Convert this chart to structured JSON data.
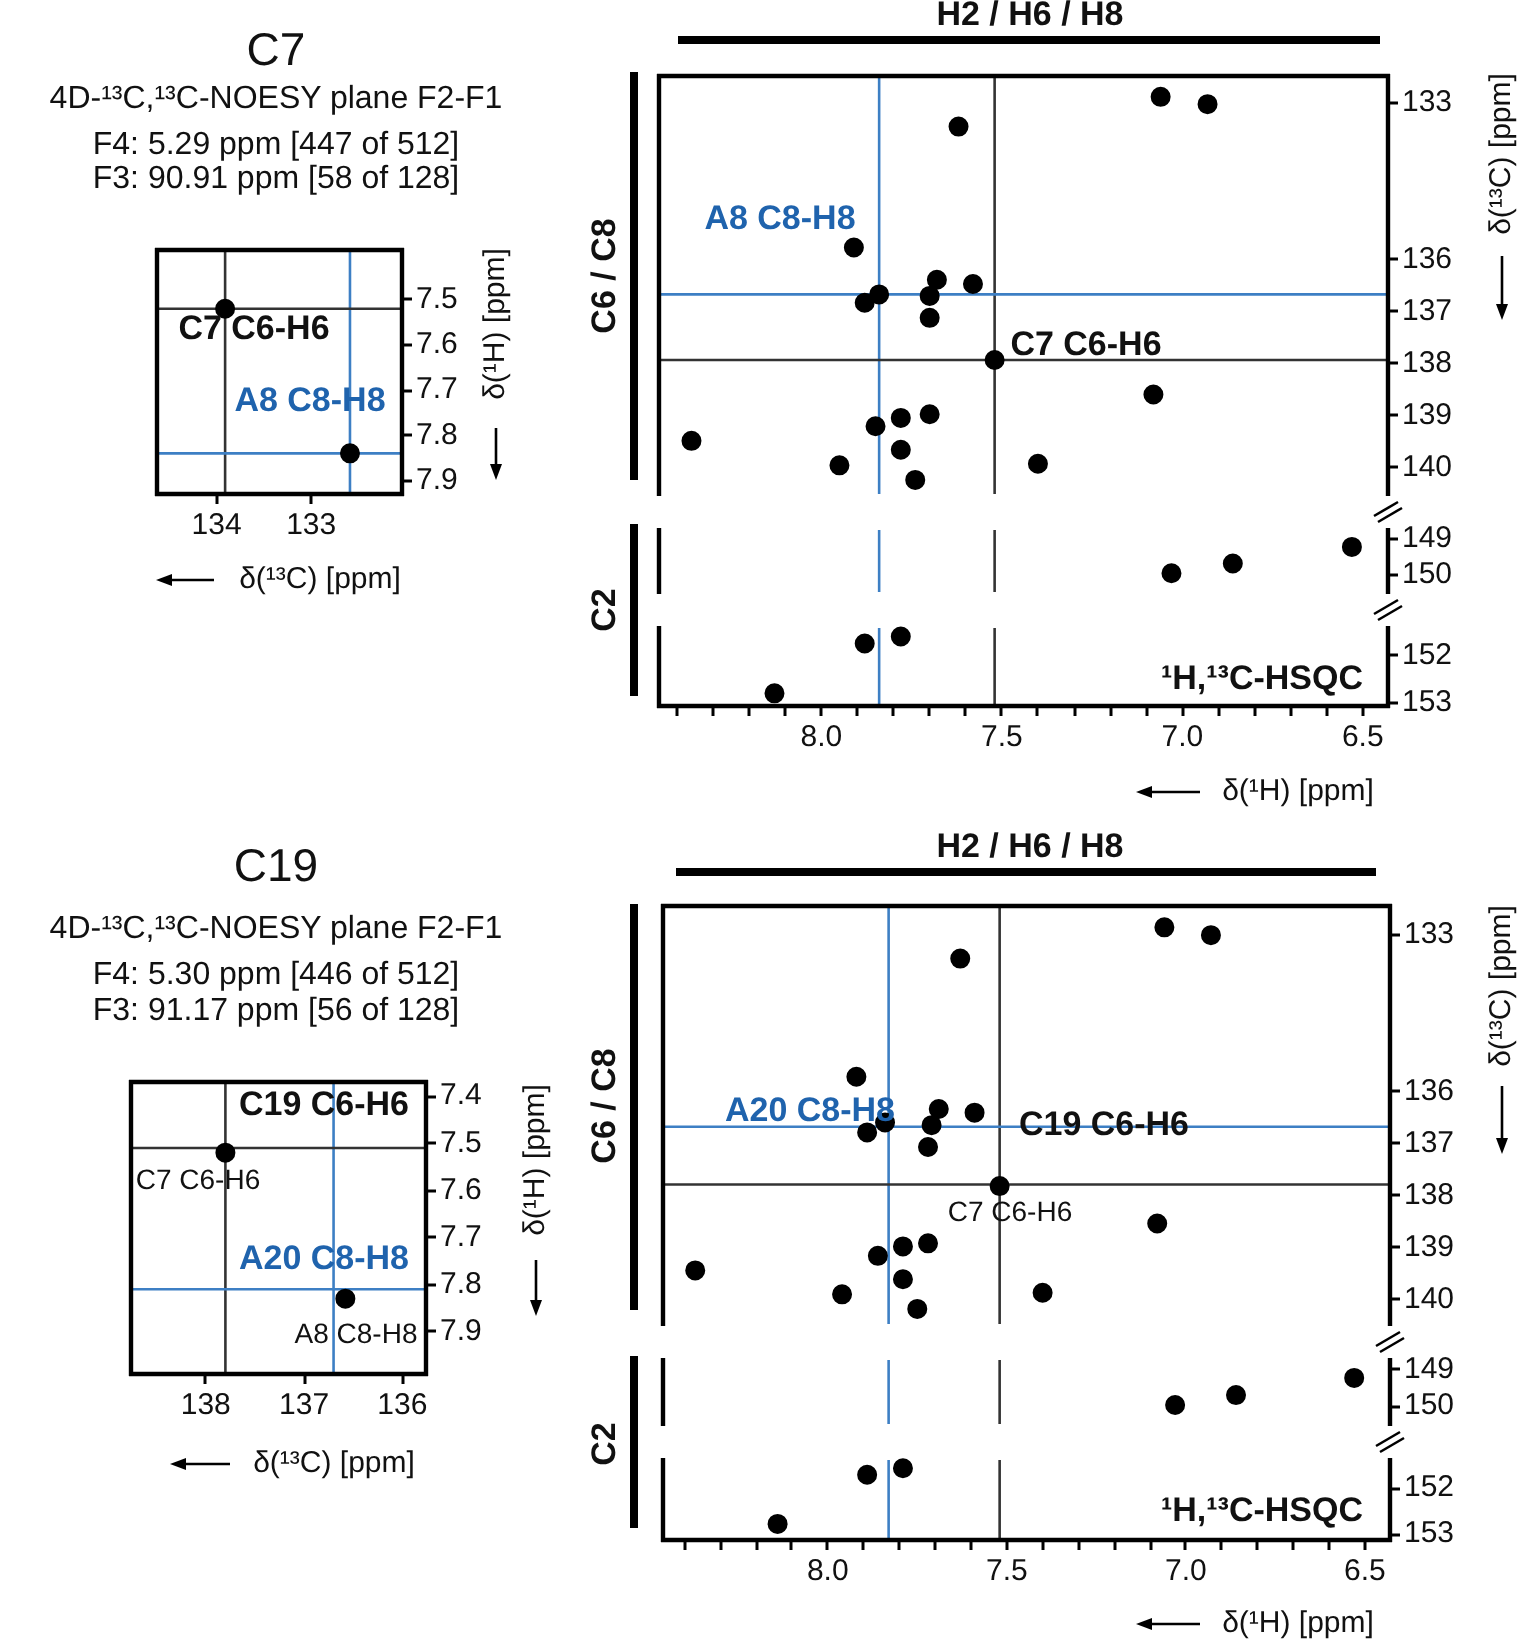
{
  "chart_data": [
    {
      "type": "scatter",
      "title": "C7",
      "subtitle": "4D-¹³C,¹³C-NOESY plane F2-F1",
      "xlabel": "δ(¹³C) [ppm]",
      "ylabel": "δ(¹H) [ppm]",
      "annotations": [
        "F4: 5.29 ppm [447 of 512]",
        "F3: 90.91 ppm [58 of 128]",
        "C7 C6-H6",
        "A8 C8-H8"
      ],
      "x": [
        133.91,
        132.59
      ],
      "values": [
        7.52,
        7.84
      ],
      "color": "#000000",
      "marker": "circle",
      "xlim": [
        134.63,
        132.04
      ],
      "xticks": [
        134,
        133
      ],
      "ylim": [
        7.93,
        7.39
      ],
      "yticks": [
        7.5,
        7.6,
        7.7,
        7.8,
        7.9
      ],
      "ref_lines": [
        {
          "axis": "x",
          "value": 133.91,
          "color": "#333333"
        },
        {
          "axis": "x",
          "value": 132.59,
          "color": "#3d7fc4"
        },
        {
          "axis": "y",
          "value": 7.52,
          "color": "#333333"
        },
        {
          "axis": "y",
          "value": 7.84,
          "color": "#3d7fc4"
        }
      ]
    },
    {
      "type": "scatter",
      "ylabel": "δ(¹³C) [ppm]",
      "annotations": [
        "H2 / H6 / H8",
        "C6 / C8",
        "A8 C8-H8",
        "C7 C6-H6"
      ],
      "x": [
        7.06,
        6.93,
        7.62,
        7.91,
        7.68,
        7.58,
        7.7,
        7.84,
        7.88,
        7.7,
        7.52,
        7.08,
        7.7,
        7.78,
        7.85,
        8.36,
        7.78,
        7.95,
        7.4,
        7.74
      ],
      "values": [
        132.88,
        133.02,
        133.45,
        135.77,
        136.39,
        136.47,
        136.7,
        136.67,
        136.83,
        137.12,
        137.93,
        138.59,
        138.97,
        139.04,
        139.2,
        139.48,
        139.65,
        139.95,
        139.92,
        140.23
      ],
      "color": "#000000",
      "marker": "circle",
      "xlim": [
        8.45,
        6.43
      ],
      "ylim": [
        140.5,
        132.48
      ],
      "yticks": [
        133,
        136,
        137,
        138,
        139,
        140
      ],
      "tick_labels": "y",
      "ref_lines": [
        {
          "axis": "x",
          "value": 7.52,
          "color": "#333333"
        },
        {
          "axis": "x",
          "value": 7.84,
          "color": "#3d7fc4"
        },
        {
          "axis": "y",
          "value": 137.93,
          "color": "#333333"
        },
        {
          "axis": "y",
          "value": 136.67,
          "color": "#3d7fc4"
        }
      ]
    },
    {
      "type": "scatter",
      "x": [
        6.53,
        6.86,
        7.03
      ],
      "values": [
        149.24,
        149.7,
        149.97
      ],
      "color": "#000000",
      "marker": "circle",
      "xlim": [
        8.45,
        6.43
      ],
      "ylim": [
        150.49,
        148.77
      ],
      "yticks": [
        149,
        150
      ],
      "tick_labels": "y",
      "ref_lines": [
        {
          "axis": "x",
          "value": 7.52,
          "color": "#333333"
        },
        {
          "axis": "x",
          "value": 7.84,
          "color": "#3d7fc4"
        }
      ]
    },
    {
      "type": "scatter",
      "xlabel": "δ(¹H) [ppm]",
      "annotations": [
        "C2",
        "¹H,¹³C-HSQC"
      ],
      "x": [
        7.78,
        7.88,
        8.13
      ],
      "values": [
        151.6,
        151.75,
        152.81
      ],
      "color": "#000000",
      "marker": "circle",
      "xlim": [
        8.45,
        6.43
      ],
      "xticks": [
        {
          "value": 8.4,
          "label": null
        },
        {
          "value": 8.3,
          "label": null
        },
        {
          "value": 8.2,
          "label": null
        },
        {
          "value": 8.1,
          "label": null
        },
        {
          "value": 8,
          "label": "8.0"
        },
        {
          "value": 7.9,
          "label": null
        },
        {
          "value": 7.8,
          "label": null
        },
        {
          "value": 7.7,
          "label": null
        },
        {
          "value": 7.6,
          "label": null
        },
        {
          "value": 7.5,
          "label": "7.5"
        },
        {
          "value": 7.4,
          "label": null
        },
        {
          "value": 7.3,
          "label": null
        },
        {
          "value": 7.2,
          "label": null
        },
        {
          "value": 7.1,
          "label": null
        },
        {
          "value": 7,
          "label": "7.0"
        },
        {
          "value": 6.9,
          "label": null
        },
        {
          "value": 6.8,
          "label": null
        },
        {
          "value": 6.7,
          "label": null
        },
        {
          "value": 6.6,
          "label": null
        },
        {
          "value": 6.5,
          "label": "6.5"
        }
      ],
      "ylim": [
        153.08,
        151.42
      ],
      "yticks": [
        152,
        153
      ],
      "ref_lines": [
        {
          "axis": "x",
          "value": 7.52,
          "color": "#333333"
        },
        {
          "axis": "x",
          "value": 7.84,
          "color": "#3d7fc4"
        }
      ]
    },
    {
      "type": "scatter",
      "title": "C19",
      "subtitle": "4D-¹³C,¹³C-NOESY plane F2-F1",
      "xlabel": "δ(¹³C) [ppm]",
      "ylabel": "δ(¹H) [ppm]",
      "annotations": [
        "F4: 5.30 ppm [446 of 512]",
        "F3: 91.17 ppm [56 of 128]",
        "C19 C6-H6",
        "C7 C6-H6",
        "A20 C8-H8",
        "A8 C8-H8"
      ],
      "x": [
        137.8,
        136.58
      ],
      "values": [
        7.52,
        7.83
      ],
      "color": "#000000",
      "marker": "circle",
      "xlim": [
        138.76,
        135.76
      ],
      "xticks": [
        138,
        137,
        136
      ],
      "ylim": [
        7.99,
        7.37
      ],
      "yticks": [
        7.4,
        7.5,
        7.6,
        7.7,
        7.8,
        7.9
      ],
      "ref_lines": [
        {
          "axis": "x",
          "value": 137.8,
          "color": "#333333"
        },
        {
          "axis": "x",
          "value": 136.7,
          "color": "#3d7fc4"
        },
        {
          "axis": "y",
          "value": 7.51,
          "color": "#333333"
        },
        {
          "axis": "y",
          "value": 7.81,
          "color": "#3d7fc4"
        }
      ]
    },
    {
      "type": "scatter",
      "ylabel": "δ(¹³C) [ppm]",
      "annotations": [
        "H2 / H6 / H8",
        "C6 / C8",
        "A20 C8-H8",
        "C19 C6-H6",
        "C7 C6-H6"
      ],
      "x": [
        7.06,
        6.93,
        7.63,
        7.92,
        7.69,
        7.59,
        7.71,
        7.84,
        7.89,
        7.72,
        7.52,
        7.08,
        7.72,
        7.79,
        7.86,
        8.37,
        7.79,
        7.96,
        7.4,
        7.75
      ],
      "values": [
        132.85,
        133.0,
        133.45,
        135.72,
        136.34,
        136.41,
        136.65,
        136.6,
        136.79,
        137.07,
        137.82,
        138.54,
        138.92,
        138.98,
        139.16,
        139.44,
        139.61,
        139.9,
        139.87,
        140.18
      ],
      "color": "#000000",
      "marker": "circle",
      "xlim": [
        8.46,
        6.43
      ],
      "ylim": [
        140.47,
        132.44
      ],
      "yticks": [
        133,
        136,
        137,
        138,
        139,
        140
      ],
      "tick_labels": "y",
      "ref_lines": [
        {
          "axis": "x",
          "value": 7.52,
          "color": "#333333"
        },
        {
          "axis": "x",
          "value": 7.83,
          "color": "#3d7fc4"
        },
        {
          "axis": "y",
          "value": 137.79,
          "color": "#333333"
        },
        {
          "axis": "y",
          "value": 136.68,
          "color": "#3d7fc4"
        }
      ]
    },
    {
      "type": "scatter",
      "x": [
        6.53,
        6.86,
        7.03
      ],
      "values": [
        149.23,
        149.7,
        149.97
      ],
      "color": "#000000",
      "marker": "circle",
      "xlim": [
        8.46,
        6.43
      ],
      "ylim": [
        150.49,
        148.74
      ],
      "yticks": [
        149,
        150
      ],
      "tick_labels": "y",
      "ref_lines": [
        {
          "axis": "x",
          "value": 7.52,
          "color": "#333333"
        },
        {
          "axis": "x",
          "value": 7.83,
          "color": "#3d7fc4"
        }
      ]
    },
    {
      "type": "scatter",
      "xlabel": "δ(¹H) [ppm]",
      "annotations": [
        "C2",
        "¹H,¹³C-HSQC"
      ],
      "x": [
        7.79,
        7.89,
        8.14
      ],
      "values": [
        151.57,
        151.71,
        152.78
      ],
      "color": "#000000",
      "marker": "circle",
      "xlim": [
        8.46,
        6.43
      ],
      "xticks": [
        {
          "value": 8.4,
          "label": null
        },
        {
          "value": 8.3,
          "label": null
        },
        {
          "value": 8.2,
          "label": null
        },
        {
          "value": 8.1,
          "label": null
        },
        {
          "value": 8,
          "label": "8.0"
        },
        {
          "value": 7.9,
          "label": null
        },
        {
          "value": 7.8,
          "label": null
        },
        {
          "value": 7.7,
          "label": null
        },
        {
          "value": 7.6,
          "label": null
        },
        {
          "value": 7.5,
          "label": "7.5"
        },
        {
          "value": 7.4,
          "label": null
        },
        {
          "value": 7.3,
          "label": null
        },
        {
          "value": 7.2,
          "label": null
        },
        {
          "value": 7.1,
          "label": null
        },
        {
          "value": 7,
          "label": "7.0"
        },
        {
          "value": 6.9,
          "label": null
        },
        {
          "value": 6.8,
          "label": null
        },
        {
          "value": 6.7,
          "label": null
        },
        {
          "value": 6.6,
          "label": null
        },
        {
          "value": 6.5,
          "label": "6.5"
        }
      ],
      "ylim": [
        153.13,
        151.39
      ],
      "yticks": [
        152,
        153
      ],
      "ref_lines": [
        {
          "axis": "x",
          "value": 7.52,
          "color": "#333333"
        },
        {
          "axis": "x",
          "value": 7.83,
          "color": "#3d7fc4"
        }
      ]
    }
  ]
}
